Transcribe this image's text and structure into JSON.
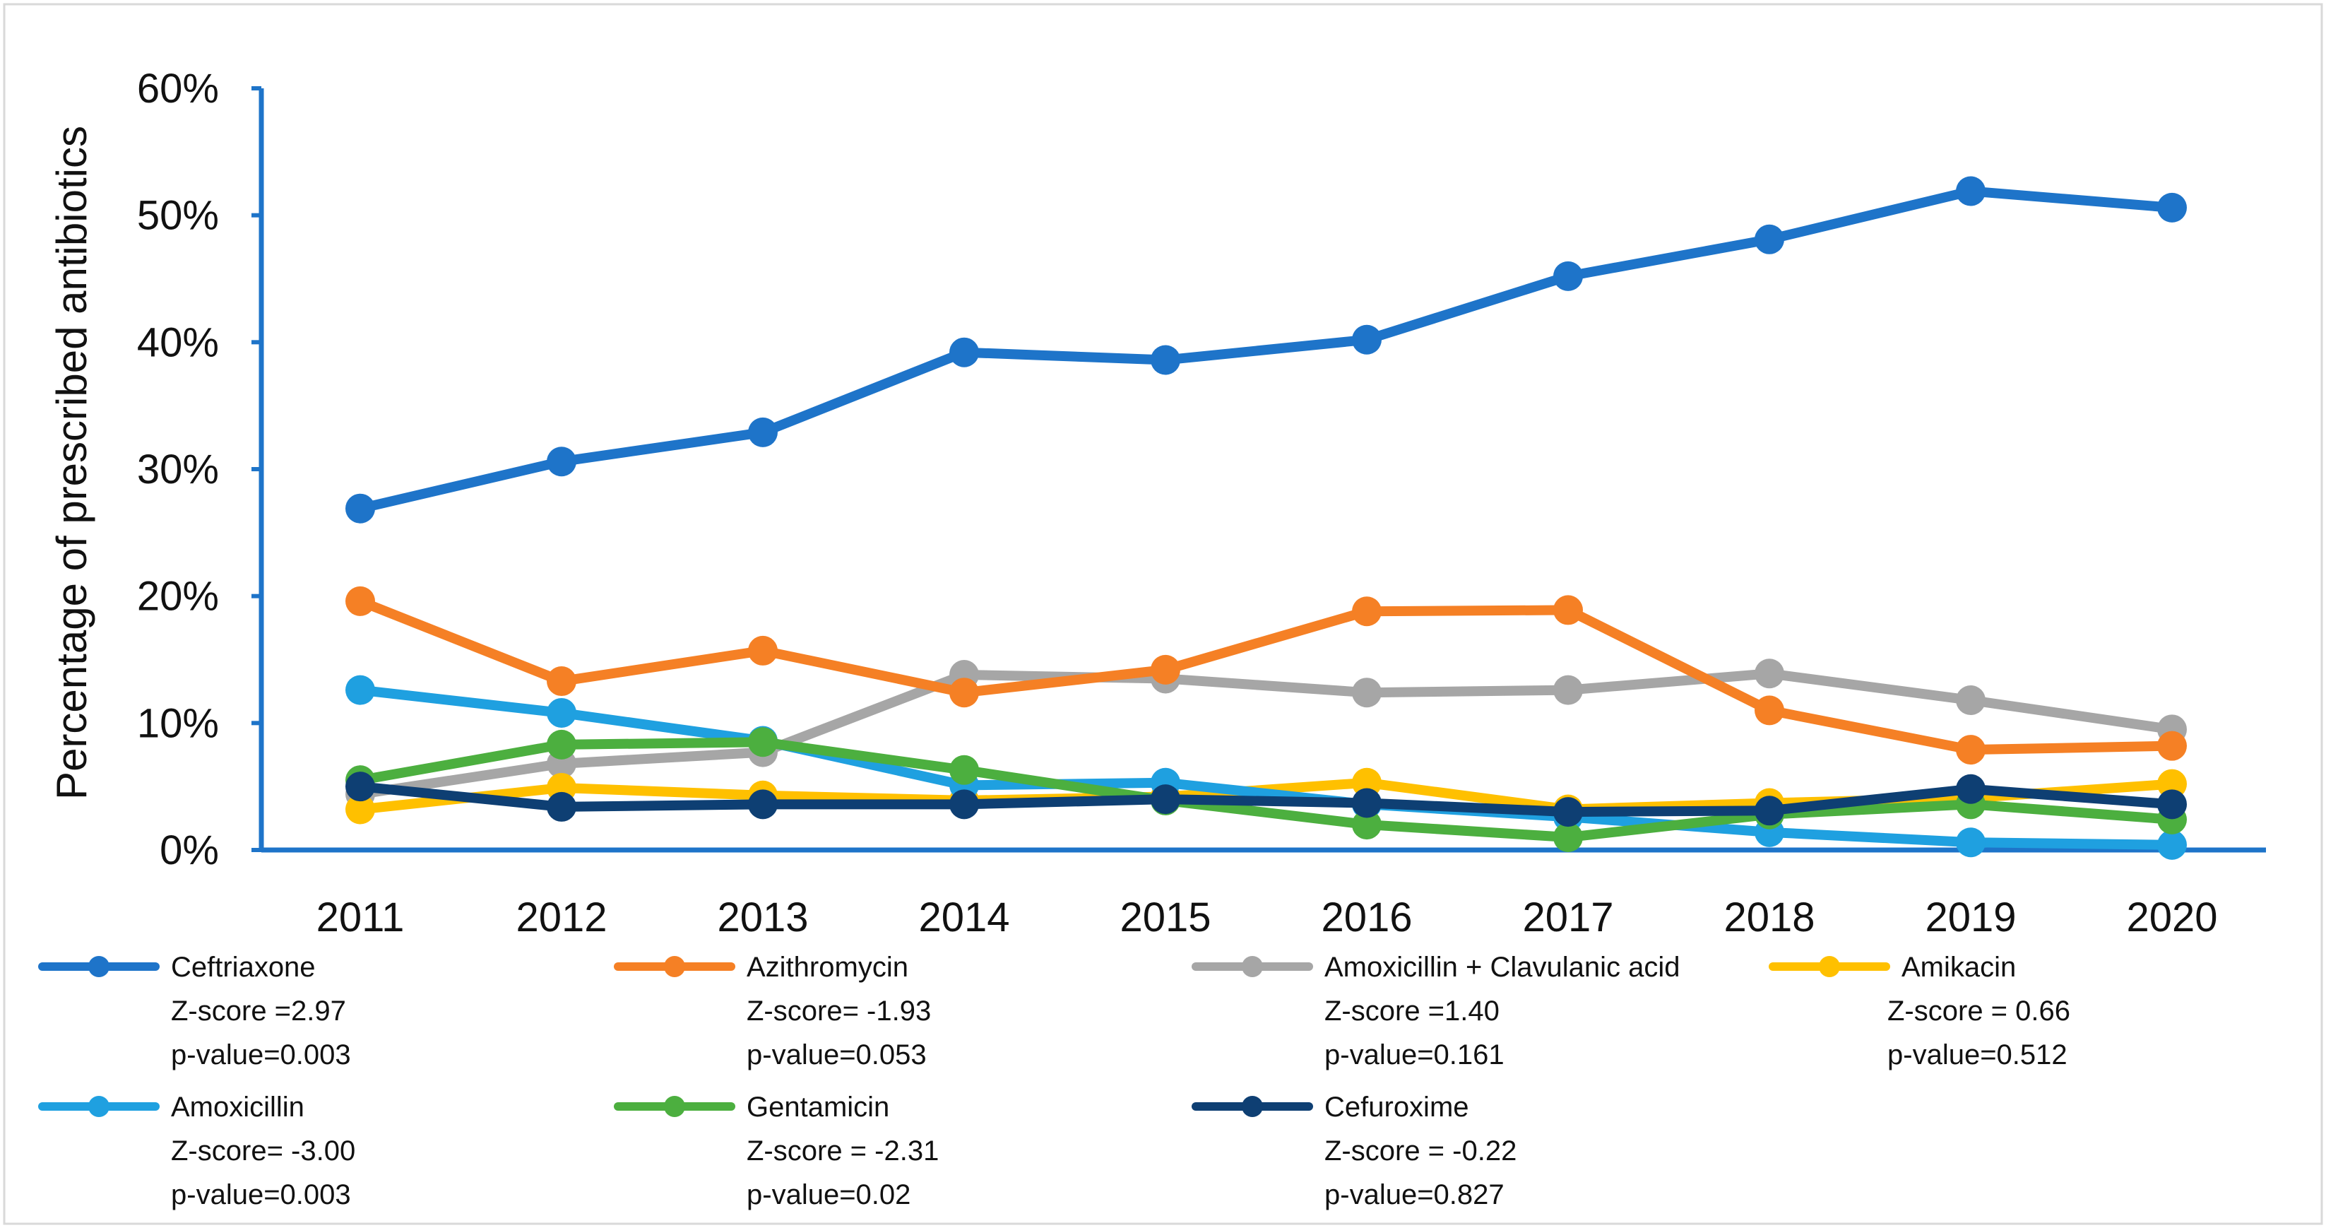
{
  "chart_data": {
    "type": "line",
    "ylabel": "Percentage of prescribed antibiotics",
    "xlabel": "",
    "ylim": [
      0,
      60
    ],
    "yticks": [
      "0%",
      "10%",
      "20%",
      "30%",
      "40%",
      "50%",
      "60%"
    ],
    "ytick_values": [
      0,
      10,
      20,
      30,
      40,
      50,
      60
    ],
    "categories": [
      "2011",
      "2012",
      "2013",
      "2014",
      "2015",
      "2016",
      "2017",
      "2018",
      "2019",
      "2020"
    ],
    "grid": false,
    "legend_position": "bottom",
    "series": [
      {
        "name": "Ceftriaxone",
        "color": "#1E74C9",
        "stats": [
          "Z-score =2.97",
          "p-value=0.003"
        ],
        "values": [
          26.9,
          30.6,
          32.9,
          39.2,
          38.6,
          40.2,
          45.2,
          48.1,
          51.9,
          50.6
        ]
      },
      {
        "name": "Azithromycin",
        "color": "#F58025",
        "stats": [
          "Z-score= -1.93",
          "p-value=0.053"
        ],
        "values": [
          19.6,
          13.3,
          15.7,
          12.4,
          14.2,
          18.8,
          18.9,
          11.0,
          7.9,
          8.2
        ]
      },
      {
        "name": "Amoxicillin + Clavulanic acid",
        "color": "#A6A6A6",
        "stats": [
          "Z-score =1.40",
          "p-value=0.161"
        ],
        "values": [
          4.4,
          6.8,
          7.7,
          13.8,
          13.5,
          12.4,
          12.6,
          13.9,
          11.8,
          9.5
        ]
      },
      {
        "name": "Amikacin",
        "color": "#FFC000",
        "stats": [
          "Z-score = 0.66",
          "p-value=0.512"
        ],
        "values": [
          3.2,
          4.9,
          4.3,
          3.9,
          4.2,
          5.3,
          3.2,
          3.7,
          4.1,
          5.2
        ]
      },
      {
        "name": "Amoxicillin",
        "color": "#1FA0E0",
        "stats": [
          "Z-score= -3.00",
          "p-value=0.003"
        ],
        "values": [
          12.6,
          10.8,
          8.6,
          5.1,
          5.3,
          3.6,
          2.6,
          1.4,
          0.6,
          0.4
        ]
      },
      {
        "name": "Gentamicin",
        "color": "#4CAF3F",
        "stats": [
          "Z-score = -2.31",
          "p-value=0.02"
        ],
        "values": [
          5.5,
          8.3,
          8.5,
          6.3,
          3.9,
          2.0,
          1.0,
          2.8,
          3.6,
          2.4
        ]
      },
      {
        "name": "Cefuroxime",
        "color": "#0E3F73",
        "stats": [
          "Z-score = -0.22",
          "p-value=0.827"
        ],
        "values": [
          5.0,
          3.4,
          3.6,
          3.6,
          4.0,
          3.7,
          3.0,
          3.1,
          4.8,
          3.6
        ]
      }
    ]
  }
}
